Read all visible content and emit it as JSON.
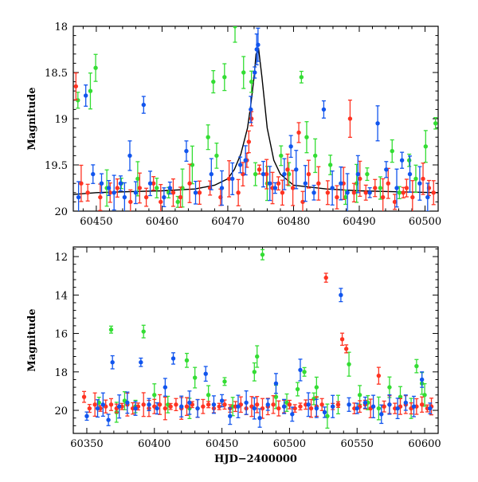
{
  "chart_data": [
    {
      "type": "scatter",
      "xlabel": "",
      "ylabel": "Magnitude",
      "xlim": [
        60446.5,
        60502
      ],
      "ylim": [
        20,
        18
      ],
      "y_inverted": true,
      "x_ticks": [
        60450,
        60460,
        60470,
        60480,
        60490,
        60500
      ],
      "x_tick_labels": [
        "60450",
        "60460",
        "60470",
        "60480",
        "60490",
        "60500"
      ],
      "y_ticks": [
        18,
        18.5,
        19,
        19.5,
        20
      ],
      "y_tick_labels": [
        "18",
        "18.5",
        "19",
        "19.5",
        "20"
      ],
      "colors": {
        "green": "#33dd33",
        "red": "#ff3322",
        "blue": "#1155ee",
        "model": "#000000"
      },
      "model_curve": {
        "x": [
          60446.5,
          60450,
          60455,
          60460,
          60465,
          60468,
          60470,
          60471,
          60472,
          60473,
          60473.5,
          60474,
          60474.3,
          60474.7,
          60475.2,
          60476,
          60477,
          60478,
          60480,
          60485,
          60490,
          60495,
          60502
        ],
        "y": [
          19.82,
          19.8,
          19.79,
          19.78,
          19.76,
          19.72,
          19.65,
          19.55,
          19.38,
          19.1,
          18.85,
          18.55,
          18.3,
          18.25,
          18.55,
          19.1,
          19.45,
          19.6,
          19.72,
          19.76,
          19.78,
          19.79,
          19.8
        ]
      },
      "series": [
        {
          "color": "green",
          "x": [
            60447.2,
            60449.1,
            60449.9,
            60451.6,
            60453.8,
            60456.3,
            60459.2,
            60461.0,
            60462.4,
            60463.1,
            60464.6,
            60467.0,
            60467.8,
            60468.3,
            60469.5,
            60471.1,
            60472.4,
            60473.6,
            60474.2,
            60476.0,
            60478.1,
            60479.3,
            60481.2,
            60482.0,
            60483.3,
            60485.6,
            60487.9,
            60489.6,
            60491.2,
            60493.2,
            60495.0,
            60496.1,
            60497.6,
            60498.6,
            60500.1,
            60501.6
          ],
          "y": [
            18.8,
            18.7,
            18.45,
            19.75,
            19.7,
            19.65,
            19.75,
            19.8,
            19.9,
            19.75,
            19.5,
            19.2,
            18.6,
            19.4,
            18.55,
            18.0,
            18.5,
            18.6,
            19.6,
            19.7,
            19.4,
            19.6,
            18.55,
            19.2,
            19.4,
            19.5,
            19.85,
            19.7,
            19.6,
            19.75,
            19.35,
            19.8,
            19.45,
            19.65,
            19.3,
            19.05
          ]
        },
        {
          "color": "red",
          "x": [
            60446.9,
            60447.7,
            60448.7,
            60450.6,
            60452.1,
            60453.2,
            60455.2,
            60456.6,
            60457.6,
            60458.7,
            60459.8,
            60461.7,
            60462.8,
            60464.2,
            60465.7,
            60467.3,
            60468.9,
            60470.2,
            60471.6,
            60472.3,
            60472.9,
            60473.2,
            60473.6,
            60474.8,
            60475.9,
            60476.8,
            60477.7,
            60478.3,
            60479.1,
            60479.9,
            60480.8,
            60481.4,
            60482.3,
            60483.8,
            60485.2,
            60486.6,
            60487.6,
            60488.6,
            60489.2,
            60490.1,
            60491.0,
            60492.4,
            60493.6,
            60494.4,
            60495.4,
            60496.7,
            60497.2,
            60498.1,
            60499.7,
            60500.6,
            60501.3
          ],
          "y": [
            18.65,
            19.7,
            19.8,
            19.85,
            19.8,
            19.75,
            19.9,
            19.75,
            19.85,
            19.7,
            19.9,
            19.8,
            19.85,
            19.7,
            19.8,
            19.75,
            19.85,
            19.65,
            19.8,
            19.6,
            19.45,
            19.25,
            19.0,
            19.55,
            19.6,
            19.75,
            19.7,
            19.8,
            19.55,
            19.75,
            19.15,
            19.9,
            19.6,
            19.7,
            19.8,
            19.85,
            19.7,
            19.0,
            19.8,
            19.65,
            19.8,
            19.75,
            19.85,
            19.7,
            19.9,
            19.8,
            19.75,
            19.85,
            19.65,
            19.75,
            19.8
          ]
        },
        {
          "color": "blue",
          "x": [
            60447.3,
            60448.4,
            60449.5,
            60450.8,
            60451.9,
            60452.7,
            60453.7,
            60454.3,
            60455.1,
            60456.0,
            60457.2,
            60458.2,
            60460.3,
            60461.2,
            60463.7,
            60465.1,
            60467.5,
            60469.1,
            60470.7,
            60471.9,
            60472.7,
            60473.5,
            60474.1,
            60474.4,
            60474.6,
            60475.4,
            60476.4,
            60477.2,
            60478.6,
            60479.6,
            60480.4,
            60481.8,
            60483.1,
            60484.6,
            60485.9,
            60487.2,
            60488.2,
            60489.8,
            60491.6,
            60492.8,
            60494.1,
            60495.7,
            60496.5,
            60497.7,
            60499.2,
            60500.4
          ],
          "y": [
            19.85,
            18.75,
            19.6,
            19.7,
            19.75,
            19.8,
            19.7,
            19.85,
            19.4,
            19.8,
            18.85,
            19.7,
            19.85,
            19.75,
            19.35,
            19.8,
            19.6,
            19.75,
            19.65,
            19.5,
            19.45,
            18.9,
            18.5,
            18.25,
            18.2,
            19.6,
            19.7,
            19.75,
            19.6,
            19.3,
            19.55,
            19.7,
            19.8,
            18.9,
            19.75,
            19.7,
            19.8,
            19.6,
            19.8,
            19.05,
            19.55,
            19.75,
            19.45,
            19.6,
            19.7,
            19.85
          ]
        }
      ]
    },
    {
      "type": "scatter",
      "xlabel": "HJD−2400000",
      "ylabel": "Magnitude",
      "xlim": [
        60340,
        60610
      ],
      "ylim": [
        21.2,
        11.5
      ],
      "y_inverted": true,
      "x_ticks": [
        60350,
        60400,
        60450,
        60500,
        60550,
        60600
      ],
      "x_tick_labels": [
        "60350",
        "60400",
        "60450",
        "60500",
        "60550",
        "60600"
      ],
      "y_ticks": [
        12,
        14,
        16,
        18,
        20
      ],
      "y_tick_labels": [
        "12",
        "14",
        "16",
        "18",
        "20"
      ],
      "colors": {
        "green": "#33dd33",
        "red": "#ff3322",
        "blue": "#1155ee"
      },
      "series": [
        {
          "color": "green",
          "x": [
            60359,
            60368,
            60372,
            60378,
            60386,
            60392,
            60400,
            60410,
            60424,
            60426,
            60430,
            60440,
            60452,
            60458,
            60474,
            60476,
            60480,
            60490,
            60498,
            60506,
            60511,
            60518,
            60520,
            60528,
            60536,
            60544,
            60552,
            60558,
            60566,
            60574,
            60582,
            60590,
            60594,
            60598,
            60600
          ],
          "y": [
            19.6,
            15.8,
            20.1,
            19.5,
            19.8,
            15.9,
            19.2,
            19.7,
            17.4,
            19.9,
            18.3,
            19.2,
            18.5,
            19.8,
            18.0,
            17.2,
            11.9,
            19.3,
            19.6,
            18.9,
            18.0,
            19.4,
            18.8,
            20.3,
            19.7,
            17.6,
            19.2,
            19.6,
            19.9,
            18.8,
            19.3,
            19.9,
            17.7,
            18.6,
            19.2
          ]
        },
        {
          "color": "red",
          "x": [
            60348,
            60352,
            60356,
            60360,
            60364,
            60368,
            60372,
            60376,
            60380,
            60384,
            60388,
            60392,
            60396,
            60400,
            60404,
            60408,
            60412,
            60416,
            60420,
            60424,
            60428,
            60432,
            60436,
            60440,
            60444,
            60448,
            60452,
            60456,
            60460,
            60464,
            60468,
            60472,
            60476,
            60480,
            60484,
            60488,
            60492,
            60496,
            60500,
            60504,
            60508,
            60512,
            60516,
            60520,
            60524,
            60527,
            60532,
            60536,
            60539,
            60542,
            60548,
            60552,
            60556,
            60560,
            60566,
            60570,
            60574,
            60578,
            60582,
            60586,
            60590,
            60594,
            60598,
            60602,
            60605
          ],
          "y": [
            19.3,
            19.9,
            19.7,
            19.9,
            19.8,
            19.7,
            19.9,
            19.8,
            19.7,
            19.9,
            19.8,
            19.7,
            19.9,
            19.8,
            19.7,
            19.9,
            19.8,
            19.7,
            19.9,
            19.8,
            19.7,
            19.9,
            19.8,
            19.7,
            19.9,
            19.8,
            19.7,
            19.9,
            19.8,
            19.7,
            19.9,
            19.8,
            19.7,
            19.9,
            19.8,
            19.7,
            19.9,
            19.8,
            19.7,
            19.9,
            19.8,
            19.7,
            19.9,
            19.8,
            19.7,
            13.1,
            19.8,
            19.7,
            16.3,
            16.8,
            19.9,
            19.8,
            19.7,
            19.9,
            18.2,
            19.8,
            19.7,
            19.9,
            19.8,
            19.7,
            19.9,
            19.8,
            19.7,
            19.9,
            19.8
          ]
        },
        {
          "color": "blue",
          "x": [
            60350,
            60358,
            60362,
            60366,
            60369,
            60374,
            60380,
            60386,
            60390,
            60396,
            60402,
            60408,
            60414,
            60420,
            60426,
            60432,
            60438,
            60444,
            60450,
            60456,
            60462,
            60468,
            60474,
            60478,
            60484,
            60490,
            60496,
            60502,
            60508,
            60514,
            60520,
            60526,
            60532,
            60538,
            60544,
            60550,
            60556,
            60562,
            60568,
            60574,
            60580,
            60586,
            60592,
            60598,
            60604
          ],
          "y": [
            20.3,
            19.9,
            19.7,
            20.5,
            17.5,
            19.8,
            19.6,
            19.9,
            17.5,
            19.7,
            19.9,
            18.8,
            17.3,
            19.8,
            19.6,
            19.9,
            18.1,
            19.7,
            19.5,
            20.3,
            19.8,
            19.6,
            19.9,
            20.4,
            19.7,
            18.6,
            19.8,
            20.2,
            17.9,
            19.7,
            19.9,
            20.1,
            19.8,
            14.0,
            19.7,
            19.9,
            19.6,
            19.8,
            20.2,
            19.7,
            19.9,
            19.6,
            19.8,
            18.4,
            19.9
          ]
        }
      ]
    }
  ]
}
